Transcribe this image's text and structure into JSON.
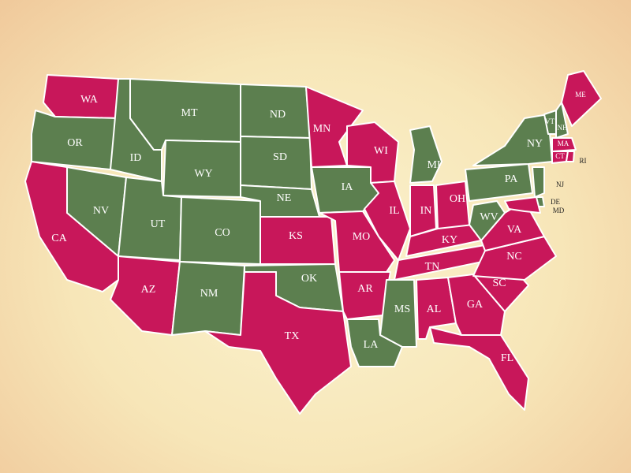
{
  "map": {
    "states": [
      {
        "label": "WA",
        "color": "#c8175a"
      },
      {
        "label": "OR",
        "color": "#5c7f4f"
      },
      {
        "label": "CA",
        "color": "#c8175a"
      },
      {
        "label": "ID",
        "color": "#5c7f4f"
      },
      {
        "label": "NV",
        "color": "#5c7f4f"
      },
      {
        "label": "MT",
        "color": "#5c7f4f"
      },
      {
        "label": "WY",
        "color": "#5c7f4f"
      },
      {
        "label": "UT",
        "color": "#5c7f4f"
      },
      {
        "label": "CO",
        "color": "#5c7f4f"
      },
      {
        "label": "AZ",
        "color": "#c8175a"
      },
      {
        "label": "NM",
        "color": "#5c7f4f"
      },
      {
        "label": "ND",
        "color": "#5c7f4f"
      },
      {
        "label": "SD",
        "color": "#5c7f4f"
      },
      {
        "label": "NE",
        "color": "#5c7f4f"
      },
      {
        "label": "KS",
        "color": "#c8175a"
      },
      {
        "label": "OK",
        "color": "#5c7f4f"
      },
      {
        "label": "TX",
        "color": "#c8175a"
      },
      {
        "label": "MN",
        "color": "#c8175a"
      },
      {
        "label": "IA",
        "color": "#5c7f4f"
      },
      {
        "label": "MO",
        "color": "#c8175a"
      },
      {
        "label": "AR",
        "color": "#c8175a"
      },
      {
        "label": "LA",
        "color": "#5c7f4f"
      },
      {
        "label": "MS",
        "color": "#5c7f4f"
      },
      {
        "label": "WI",
        "color": "#c8175a"
      },
      {
        "label": "IL",
        "color": "#c8175a"
      },
      {
        "label": "MI",
        "color": "#5c7f4f"
      },
      {
        "label": "IN",
        "color": "#c8175a"
      },
      {
        "label": "OH",
        "color": "#c8175a"
      },
      {
        "label": "KY",
        "color": "#c8175a"
      },
      {
        "label": "TN",
        "color": "#c8175a"
      },
      {
        "label": "AL",
        "color": "#c8175a"
      },
      {
        "label": "GA",
        "color": "#c8175a"
      },
      {
        "label": "FL",
        "color": "#c8175a"
      },
      {
        "label": "SC",
        "color": "#c8175a"
      },
      {
        "label": "NC",
        "color": "#c8175a"
      },
      {
        "label": "VA",
        "color": "#c8175a"
      },
      {
        "label": "WV",
        "color": "#5c7f4f"
      },
      {
        "label": "PA",
        "color": "#5c7f4f"
      },
      {
        "label": "NY",
        "color": "#5c7f4f"
      },
      {
        "label": "VT",
        "color": "#5c7f4f"
      },
      {
        "label": "NH",
        "color": "#5c7f4f"
      },
      {
        "label": "ME",
        "color": "#c8175a"
      },
      {
        "label": "MA",
        "color": "#c8175a"
      },
      {
        "label": "CT",
        "color": "#c8175a"
      },
      {
        "label": "RI",
        "color": "#c8175a"
      },
      {
        "label": "NJ",
        "color": "#5c7f4f"
      },
      {
        "label": "DE",
        "color": "#5c7f4f"
      },
      {
        "label": "MD",
        "color": "#c8175a"
      }
    ]
  }
}
